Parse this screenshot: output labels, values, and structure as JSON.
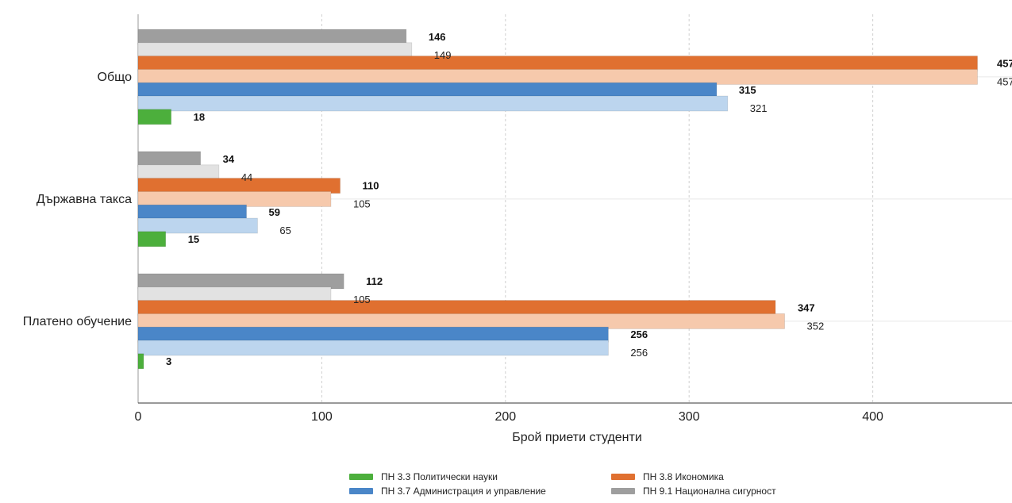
{
  "chart_data": {
    "type": "bar",
    "orientation": "horizontal",
    "title": "",
    "xlabel": "Брой приети студенти",
    "ylabel": "",
    "xlim": [
      0,
      475
    ],
    "x_ticks": [
      0,
      100,
      200,
      300,
      400
    ],
    "grid": "vertical dashed",
    "legend_position": "bottom",
    "categories": [
      "Общо",
      "Държавна такса",
      "Платено обучение"
    ],
    "series": [
      {
        "name": "ПН 9.1 Национална сигурност",
        "color": "#9e9e9e",
        "bold_label": true,
        "values": [
          146,
          34,
          112
        ]
      },
      {
        "name": "",
        "color": "#e2e2e2",
        "bold_label": false,
        "values": [
          149,
          44,
          105
        ]
      },
      {
        "name": "ПН 3.8 Икономика",
        "color": "#e07030",
        "bold_label": true,
        "values": [
          457,
          110,
          347
        ]
      },
      {
        "name": "",
        "color": "#f6c9ac",
        "bold_label": false,
        "values": [
          457,
          105,
          352
        ]
      },
      {
        "name": "ПН 3.7 Администрация и управление",
        "color": "#4a86c8",
        "bold_label": true,
        "values": [
          315,
          59,
          256
        ]
      },
      {
        "name": "",
        "color": "#bcd5ee",
        "bold_label": false,
        "values": [
          321,
          65,
          256
        ]
      },
      {
        "name": "ПН 3.3 Политически науки",
        "color": "#4caf3c",
        "bold_label": true,
        "values": [
          18,
          15,
          3
        ]
      }
    ],
    "legend": [
      {
        "label": "ПН 3.3 Политически науки",
        "color": "#4caf3c"
      },
      {
        "label": "ПН 3.8 Икономика",
        "color": "#e07030"
      },
      {
        "label": "ПН 3.7 Администрация и управление",
        "color": "#4a86c8"
      },
      {
        "label": "ПН 9.1 Национална сигурност",
        "color": "#9e9e9e"
      }
    ]
  }
}
